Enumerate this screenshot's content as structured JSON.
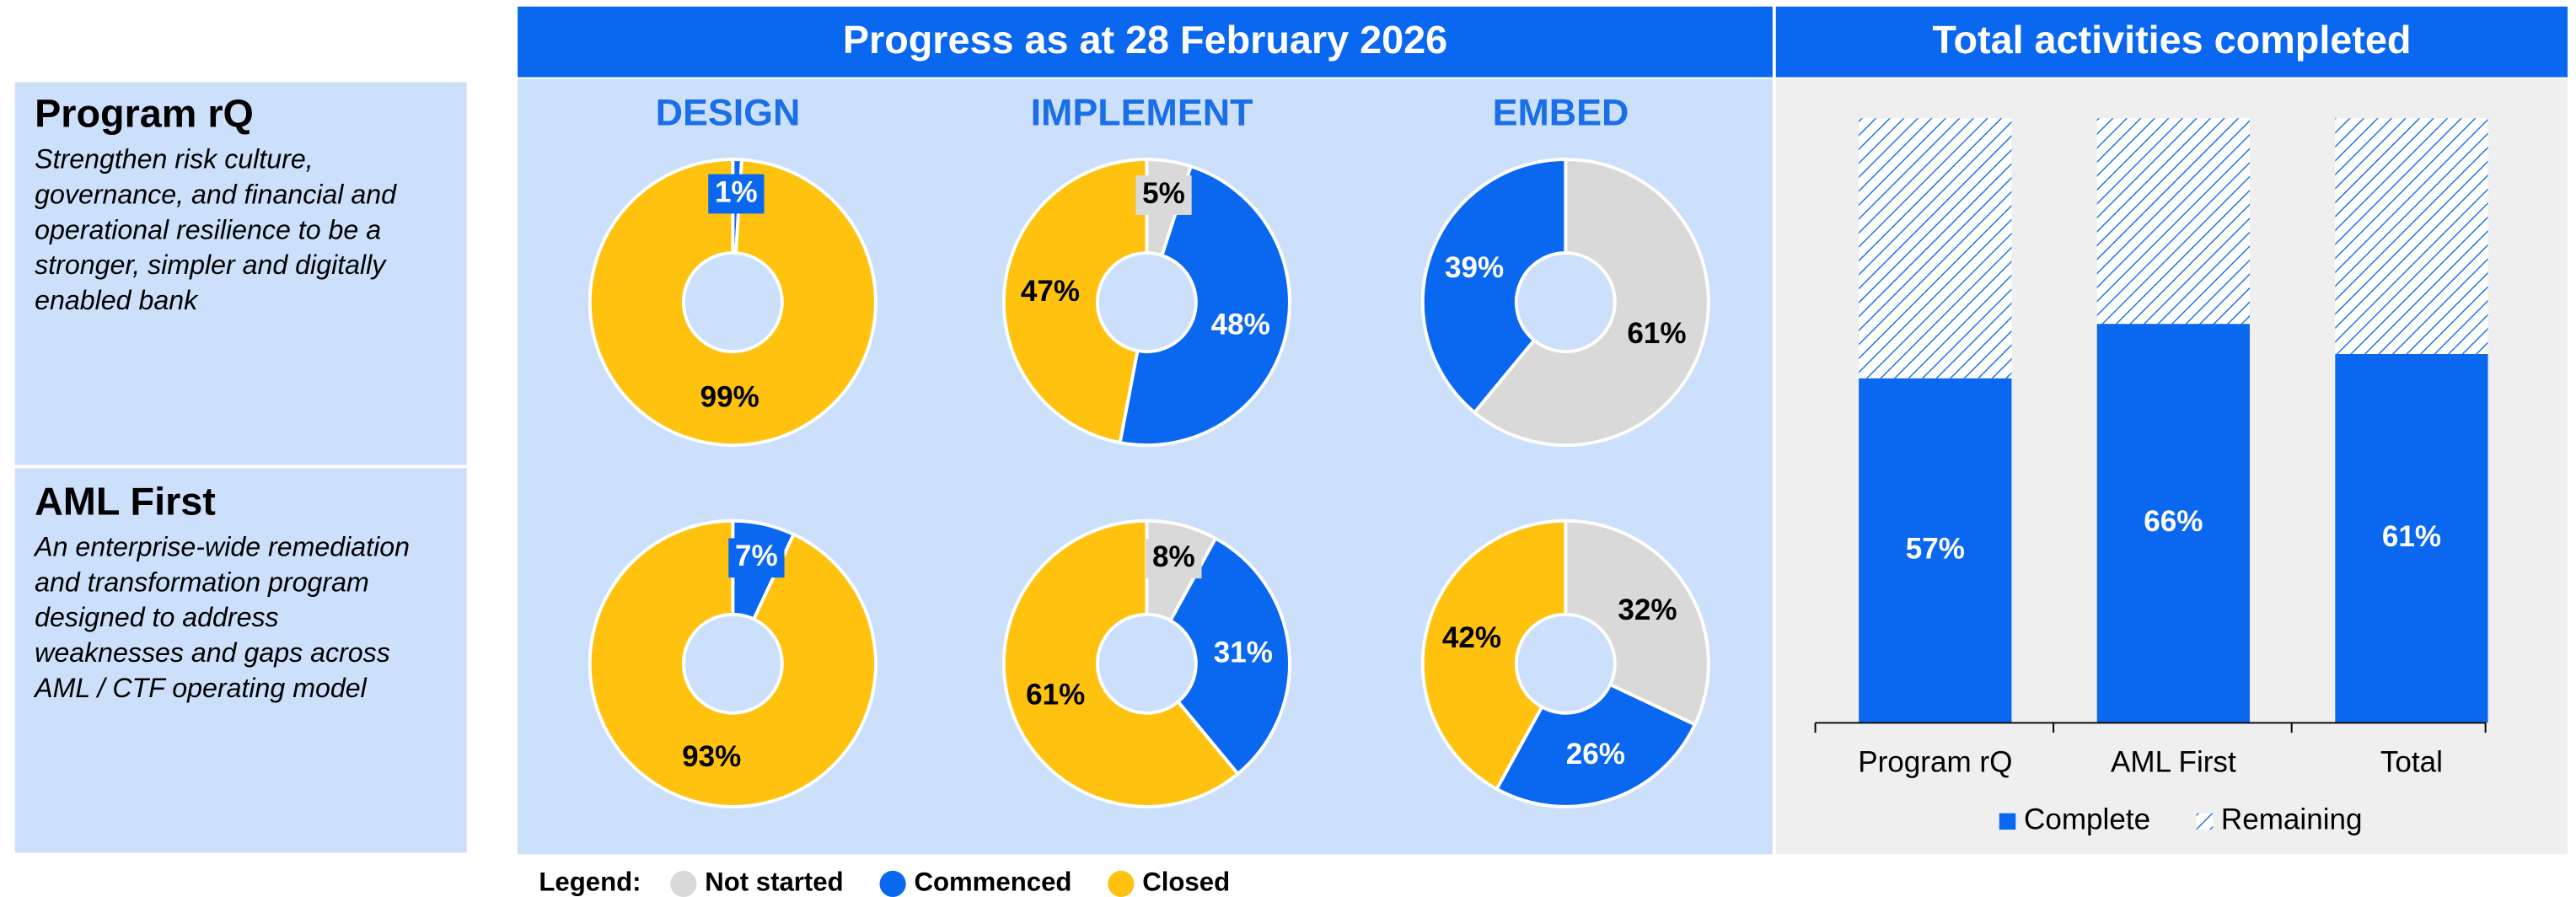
{
  "header": {
    "progress_title": "Progress as at 28 February 2026",
    "total_title": "Total activities completed"
  },
  "programs": [
    {
      "name": "Program rQ",
      "description_lines": [
        "Strengthen risk culture,",
        "governance, and financial and",
        "operational resilience to be a",
        "stronger, simpler and digitally",
        "enabled bank"
      ]
    },
    {
      "name": "AML First",
      "description_lines": [
        "An enterprise-wide remediation",
        "and transformation program",
        "designed to address",
        "weaknesses and gaps across",
        "AML / CTF operating model"
      ]
    }
  ],
  "phases": [
    "DESIGN",
    "IMPLEMENT",
    "EMBED"
  ],
  "legend": {
    "label": "Legend:",
    "items": [
      {
        "name": "Not started",
        "color": "#d9d9d9"
      },
      {
        "name": "Commenced",
        "color": "#0a68f0"
      },
      {
        "name": "Closed",
        "color": "#ffc20e"
      }
    ]
  },
  "chart_data": [
    {
      "type": "pie",
      "donut": true,
      "values": [
        1,
        99
      ],
      "value_labels": [
        "1%",
        "99%"
      ],
      "colors": [
        "#0a68f0",
        "#ffc20e"
      ]
    },
    {
      "type": "pie",
      "donut": true,
      "values": [
        5,
        48,
        47
      ],
      "value_labels": [
        "5%",
        "48%",
        "47%"
      ],
      "colors": [
        "#d9d9d9",
        "#0a68f0",
        "#ffc20e"
      ]
    },
    {
      "type": "pie",
      "donut": true,
      "values": [
        61,
        39
      ],
      "value_labels": [
        "61%",
        "39%"
      ],
      "colors": [
        "#d9d9d9",
        "#0a68f0"
      ]
    },
    {
      "type": "pie",
      "donut": true,
      "values": [
        7,
        93
      ],
      "value_labels": [
        "7%",
        "93%"
      ],
      "colors": [
        "#0a68f0",
        "#ffc20e"
      ]
    },
    {
      "type": "pie",
      "donut": true,
      "values": [
        8,
        31,
        61
      ],
      "value_labels": [
        "8%",
        "31%",
        "61%"
      ],
      "colors": [
        "#d9d9d9",
        "#0a68f0",
        "#ffc20e"
      ]
    },
    {
      "type": "pie",
      "donut": true,
      "values": [
        32,
        26,
        42
      ],
      "value_labels": [
        "32%",
        "26%",
        "42%"
      ],
      "colors": [
        "#d9d9d9",
        "#0a68f0",
        "#ffc20e"
      ]
    },
    {
      "type": "bar",
      "stacked": true,
      "categories": [
        "Program rQ",
        "AML First",
        "Total"
      ],
      "ylim": [
        0,
        100
      ],
      "series": [
        {
          "name": "Complete",
          "color": "#0a68f0",
          "values": [
            57,
            66,
            61
          ],
          "value_labels": [
            "57%",
            "66%",
            "61%"
          ]
        },
        {
          "name": "Remaining",
          "color": "#0a68f0",
          "hatch": true,
          "values": [
            43,
            34,
            39
          ]
        }
      ]
    }
  ]
}
